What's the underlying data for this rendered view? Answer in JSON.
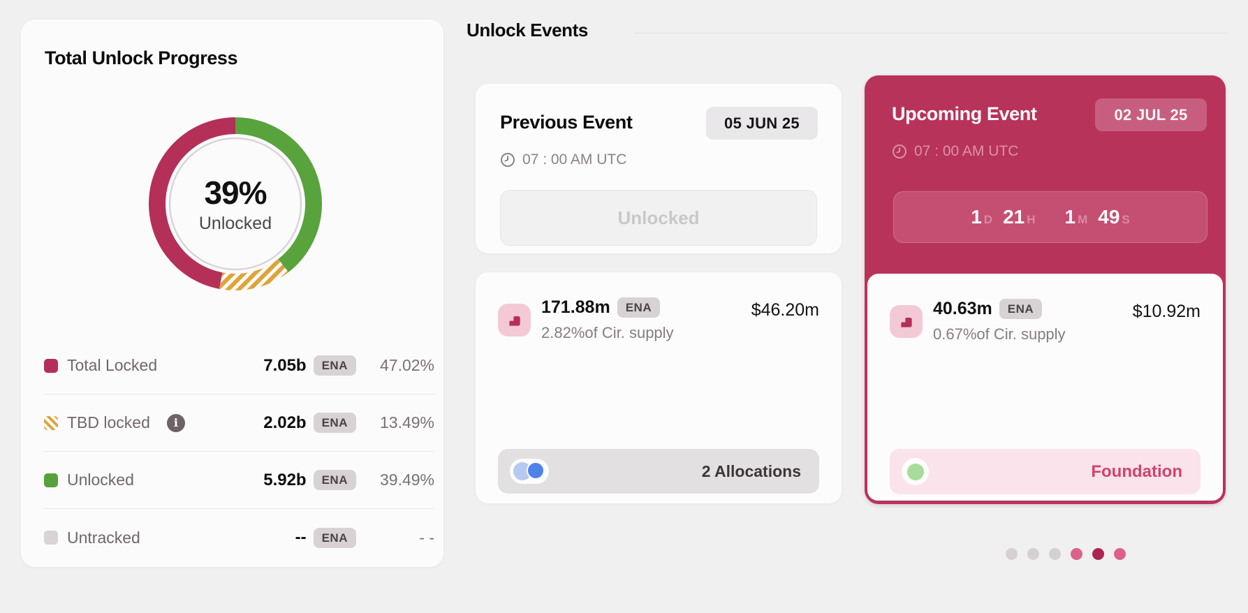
{
  "progress_card": {
    "title": "Total Unlock Progress",
    "center_value": "39%",
    "center_label": "Unlocked",
    "legend": [
      {
        "label": "Total Locked",
        "swatch": "crimson",
        "value": "7.05b",
        "unit": "ENA",
        "pct": "47.02%"
      },
      {
        "label": "TBD locked",
        "swatch": "striped",
        "value": "2.02b",
        "unit": "ENA",
        "pct": "13.49%",
        "info": true
      },
      {
        "label": "Unlocked",
        "swatch": "green",
        "value": "5.92b",
        "unit": "ENA",
        "pct": "39.49%"
      },
      {
        "label": "Untracked",
        "swatch": "gray",
        "value": "--",
        "unit": "ENA",
        "pct": "- -"
      }
    ]
  },
  "chart_data": {
    "type": "pie",
    "subtype": "donut",
    "title": "Total Unlock Progress",
    "center_label": "39% Unlocked",
    "start": "top",
    "direction": "clockwise",
    "segments": [
      {
        "label": "Unlocked",
        "value": 39.49,
        "color": "#58a33c"
      },
      {
        "label": "TBD locked",
        "value": 13.49,
        "color": "#dfa33c",
        "pattern": "diagonal-stripes"
      },
      {
        "label": "Total Locked",
        "value": 47.02,
        "color": "#b43059"
      }
    ],
    "units": "percent of total supply",
    "token": "ENA"
  },
  "events": {
    "section_title": "Unlock Events",
    "previous": {
      "title": "Previous Event",
      "date_badge": "05 JUN 25",
      "time": "07 : 00 AM UTC",
      "status_button": "Unlocked",
      "allocation": {
        "amount": "171.88m",
        "unit": "ENA",
        "supply_share": "2.82%of Cir. supply",
        "usd_value": "$46.20m"
      },
      "footer": {
        "label": "2 Allocations",
        "toggle_on": true
      }
    },
    "upcoming": {
      "title": "Upcoming Event",
      "date_badge": "02 JUL 25",
      "time": "07 : 00 AM UTC",
      "countdown": [
        {
          "value": "1",
          "unit": "D"
        },
        {
          "value": "21",
          "unit": "H"
        },
        {
          "value": "1",
          "unit": "M"
        },
        {
          "value": "49",
          "unit": "S"
        }
      ],
      "allocation": {
        "amount": "40.63m",
        "unit": "ENA",
        "supply_share": "0.67%of Cir. supply",
        "usd_value": "$10.92m"
      },
      "footer": {
        "label": "Foundation",
        "dot_color": "#a8dc9b"
      }
    },
    "pagination": {
      "dots": [
        "#d6d0d4",
        "#d6d0d4",
        "#d6d0d4",
        "#dd6287",
        "#ad2551",
        "#dd6287"
      ],
      "active_index": 4
    }
  }
}
